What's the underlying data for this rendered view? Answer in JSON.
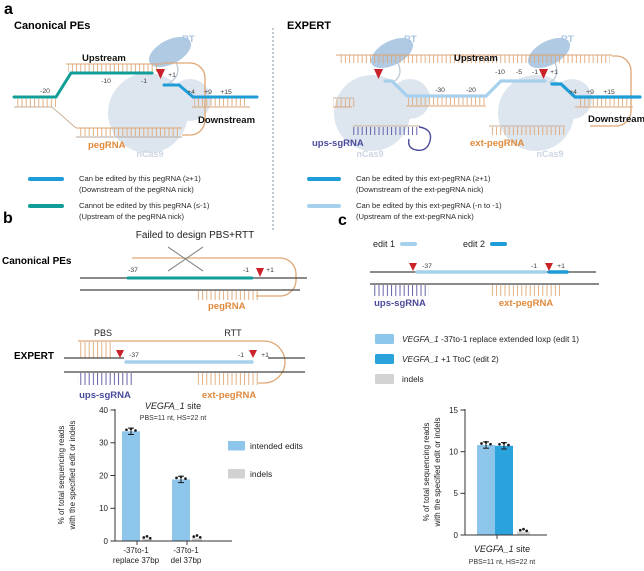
{
  "figure": {
    "panel_labels": {
      "a": "a",
      "b": "b",
      "c": "c"
    }
  },
  "panel_a": {
    "left": {
      "heading": "Canonical PEs",
      "labels": {
        "rt": "RT",
        "ncas9": "nCas9",
        "upstream": "Upstream",
        "downstream": "Downstream",
        "pegrna": "pegRNA"
      },
      "positions": {
        "m20": "-20",
        "m10": "-10",
        "m1": "-1",
        "p1": "+1",
        "p4": "+4",
        "p9": "+9",
        "p15": "+15"
      },
      "legend": [
        {
          "swatch_color": "#1e9cd7",
          "line1": "Can be edited by this pegRNA (≥+1)",
          "line2": "(Downstream of the pegRNA nick)"
        },
        {
          "swatch_color": "#129e98",
          "line1": "Cannot be edited by this pegRNA (≤-1)",
          "line2": "(Upstream of the pegRNA nick)"
        }
      ]
    },
    "right": {
      "heading": "EXPERT",
      "labels": {
        "rt": "RT",
        "ncas9": "nCas9",
        "upstream": "Upstream",
        "downstream": "Downstream",
        "ups_sgrna": "ups-sgRNA",
        "ext_pegrna": "ext-pegRNA"
      },
      "positions": {
        "m30": "-30",
        "m20": "-20",
        "m10": "-10",
        "m5": "-5",
        "m1": "-1",
        "p1": "+1",
        "p4": "+4",
        "p9": "+9",
        "p15": "+15"
      },
      "legend": [
        {
          "swatch_color": "#1e9cd7",
          "line1": "Can be edited by this ext-pegRNA (≥+1)",
          "line2": "(Downstream of the ext-pegRNA nick)"
        },
        {
          "swatch_color": "#a6d0ec",
          "line1": "Can be edited by this ext-pegRNA (-n to -1)",
          "line2": "(Upstream of the ext-pegRNA nick)"
        }
      ]
    }
  },
  "panel_b": {
    "title": "Failed to design PBS+RTT",
    "canonical": {
      "heading": "Canonical PEs",
      "pegrna": "pegRNA",
      "m37": "-37",
      "m1": "-1",
      "p1": "+1"
    },
    "expert": {
      "heading": "EXPERT",
      "pbs": "PBS",
      "rtt": "RTT",
      "ups_sgrna": "ups-sgRNA",
      "ext_pegrna": "ext-pegRNA",
      "m37": "-37",
      "m1": "-1",
      "p1": "+1"
    }
  },
  "panel_c": {
    "edit1_label": "edit 1",
    "edit2_label": "edit 2",
    "diagram": {
      "ups_sgrna": "ups-sgRNA",
      "ext_pegrna": "ext-pegRNA",
      "m37": "-37",
      "m1": "-1",
      "p1": "+1"
    },
    "legend": [
      {
        "swatch_color": "#8dc6ea",
        "gene": "VEGFA_1",
        "rest": " -37to-1 replace extended loxp (edit 1)"
      },
      {
        "swatch_color": "#2aa2dc",
        "gene": "VEGFA_1",
        "rest": " +1 TtoC (edit 2)"
      },
      {
        "swatch_color": "#d2d2d2",
        "gene": "",
        "rest": "indels"
      }
    ]
  },
  "chart_data": [
    {
      "id": "panel_b_chart",
      "type": "bar",
      "title_gene": "VEGFA_1",
      "title_rest": " site",
      "subtitle": "PBS=11 nt, HS=22 nt",
      "ylabel_line1": "% of total sequencing reads",
      "ylabel_line2": "with the specified edit or indels",
      "ylim": [
        0,
        40
      ],
      "yticks": [
        "0",
        "10",
        "20",
        "30",
        "40"
      ],
      "categories": [
        [
          "-37to-1",
          "replace 37bp"
        ],
        [
          "-37to-1",
          "del 37bp"
        ]
      ],
      "series": [
        {
          "name": "intended edits",
          "color": "#8dc6ea",
          "values": [
            33.5,
            18.8
          ]
        },
        {
          "name": "indels",
          "color": "#d2d2d2",
          "values": [
            0.6,
            0.9
          ]
        }
      ],
      "legend_position": "right",
      "grid": false
    },
    {
      "id": "panel_c_chart",
      "type": "bar",
      "xlabel_gene": "VEGFA_1",
      "xlabel_rest": " site",
      "xsublabel": "PBS=11 nt, HS=22 nt",
      "ylabel_line1": "% of total sequencing reads",
      "ylabel_line2": "with the specified edit or indels",
      "ylim": [
        0,
        15
      ],
      "yticks": [
        "0",
        "5",
        "10",
        "15"
      ],
      "categories": [
        [
          "VEGFA_1 site"
        ]
      ],
      "series": [
        {
          "name": "VEGFA_1 -37to-1 replace extended loxp (edit 1)",
          "color": "#8dc6ea",
          "values": [
            10.8
          ]
        },
        {
          "name": "VEGFA_1 +1 TtoC (edit 2)",
          "color": "#2aa2dc",
          "values": [
            10.7
          ]
        },
        {
          "name": "indels",
          "color": "#d2d2d2",
          "values": [
            0.4
          ]
        }
      ],
      "legend_position": "right",
      "grid": false
    }
  ],
  "colors": {
    "teal": "#129e98",
    "blue": "#1e9cd7",
    "light_blue": "#a6d0ec",
    "bar_light_blue": "#8dc6ea",
    "bar_blue": "#2aa2dc",
    "orange": "#dfa673",
    "orange_text": "#e08a3c",
    "indigo": "#4a4a9c",
    "nick_red": "#cb2128",
    "indel_gray": "#d2d2d2",
    "protein": "#dde6ef",
    "rt_blue": "#a9c5e2"
  }
}
